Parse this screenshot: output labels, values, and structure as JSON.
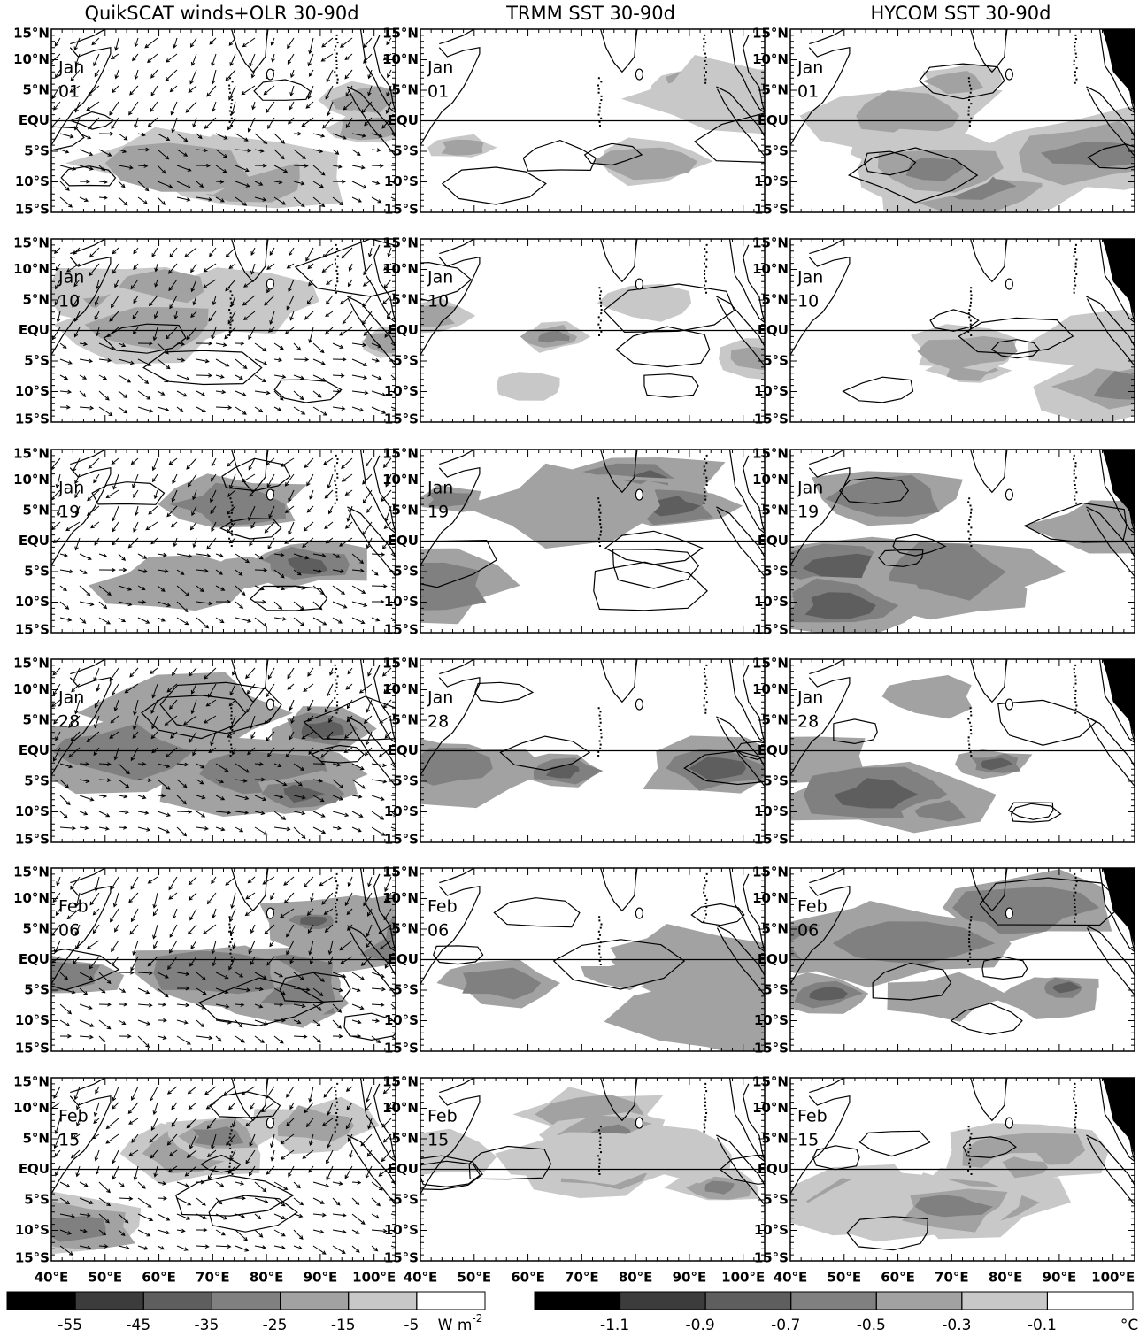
{
  "columns": [
    {
      "title": "QuikSCAT winds+OLR 30-90d"
    },
    {
      "title": "TRMM SST 30-90d"
    },
    {
      "title": "HYCOM SST 30-90d"
    }
  ],
  "rows": [
    {
      "month": "Jan",
      "day": "01"
    },
    {
      "month": "Jan",
      "day": "10"
    },
    {
      "month": "Jan",
      "day": "19"
    },
    {
      "month": "Jan",
      "day": "28"
    },
    {
      "month": "Feb",
      "day": "06"
    },
    {
      "month": "Feb",
      "day": "15"
    }
  ],
  "lat_labels": [
    "15°N",
    "10°N",
    "5°N",
    "EQU",
    "5°S",
    "10°S",
    "15°S"
  ],
  "lon_labels": [
    "40°E",
    "50°E",
    "60°E",
    "70°E",
    "80°E",
    "90°E",
    "100°E"
  ],
  "colorbars": [
    {
      "levels": [
        -55,
        -45,
        -35,
        -25,
        -15,
        -5
      ],
      "unit": "W m",
      "unit_sup": "-2",
      "colors": [
        "#000000",
        "#3c3c3c",
        "#5e5e5e",
        "#808080",
        "#a2a2a2",
        "#c8c8c8",
        "#ffffff"
      ]
    },
    {
      "levels": [
        -1.1,
        -0.9,
        -0.7,
        -0.5,
        -0.3,
        -0.1
      ],
      "unit": "°C",
      "colors": [
        "#000000",
        "#3c3c3c",
        "#5e5e5e",
        "#808080",
        "#a2a2a2",
        "#c8c8c8",
        "#ffffff"
      ]
    }
  ]
}
